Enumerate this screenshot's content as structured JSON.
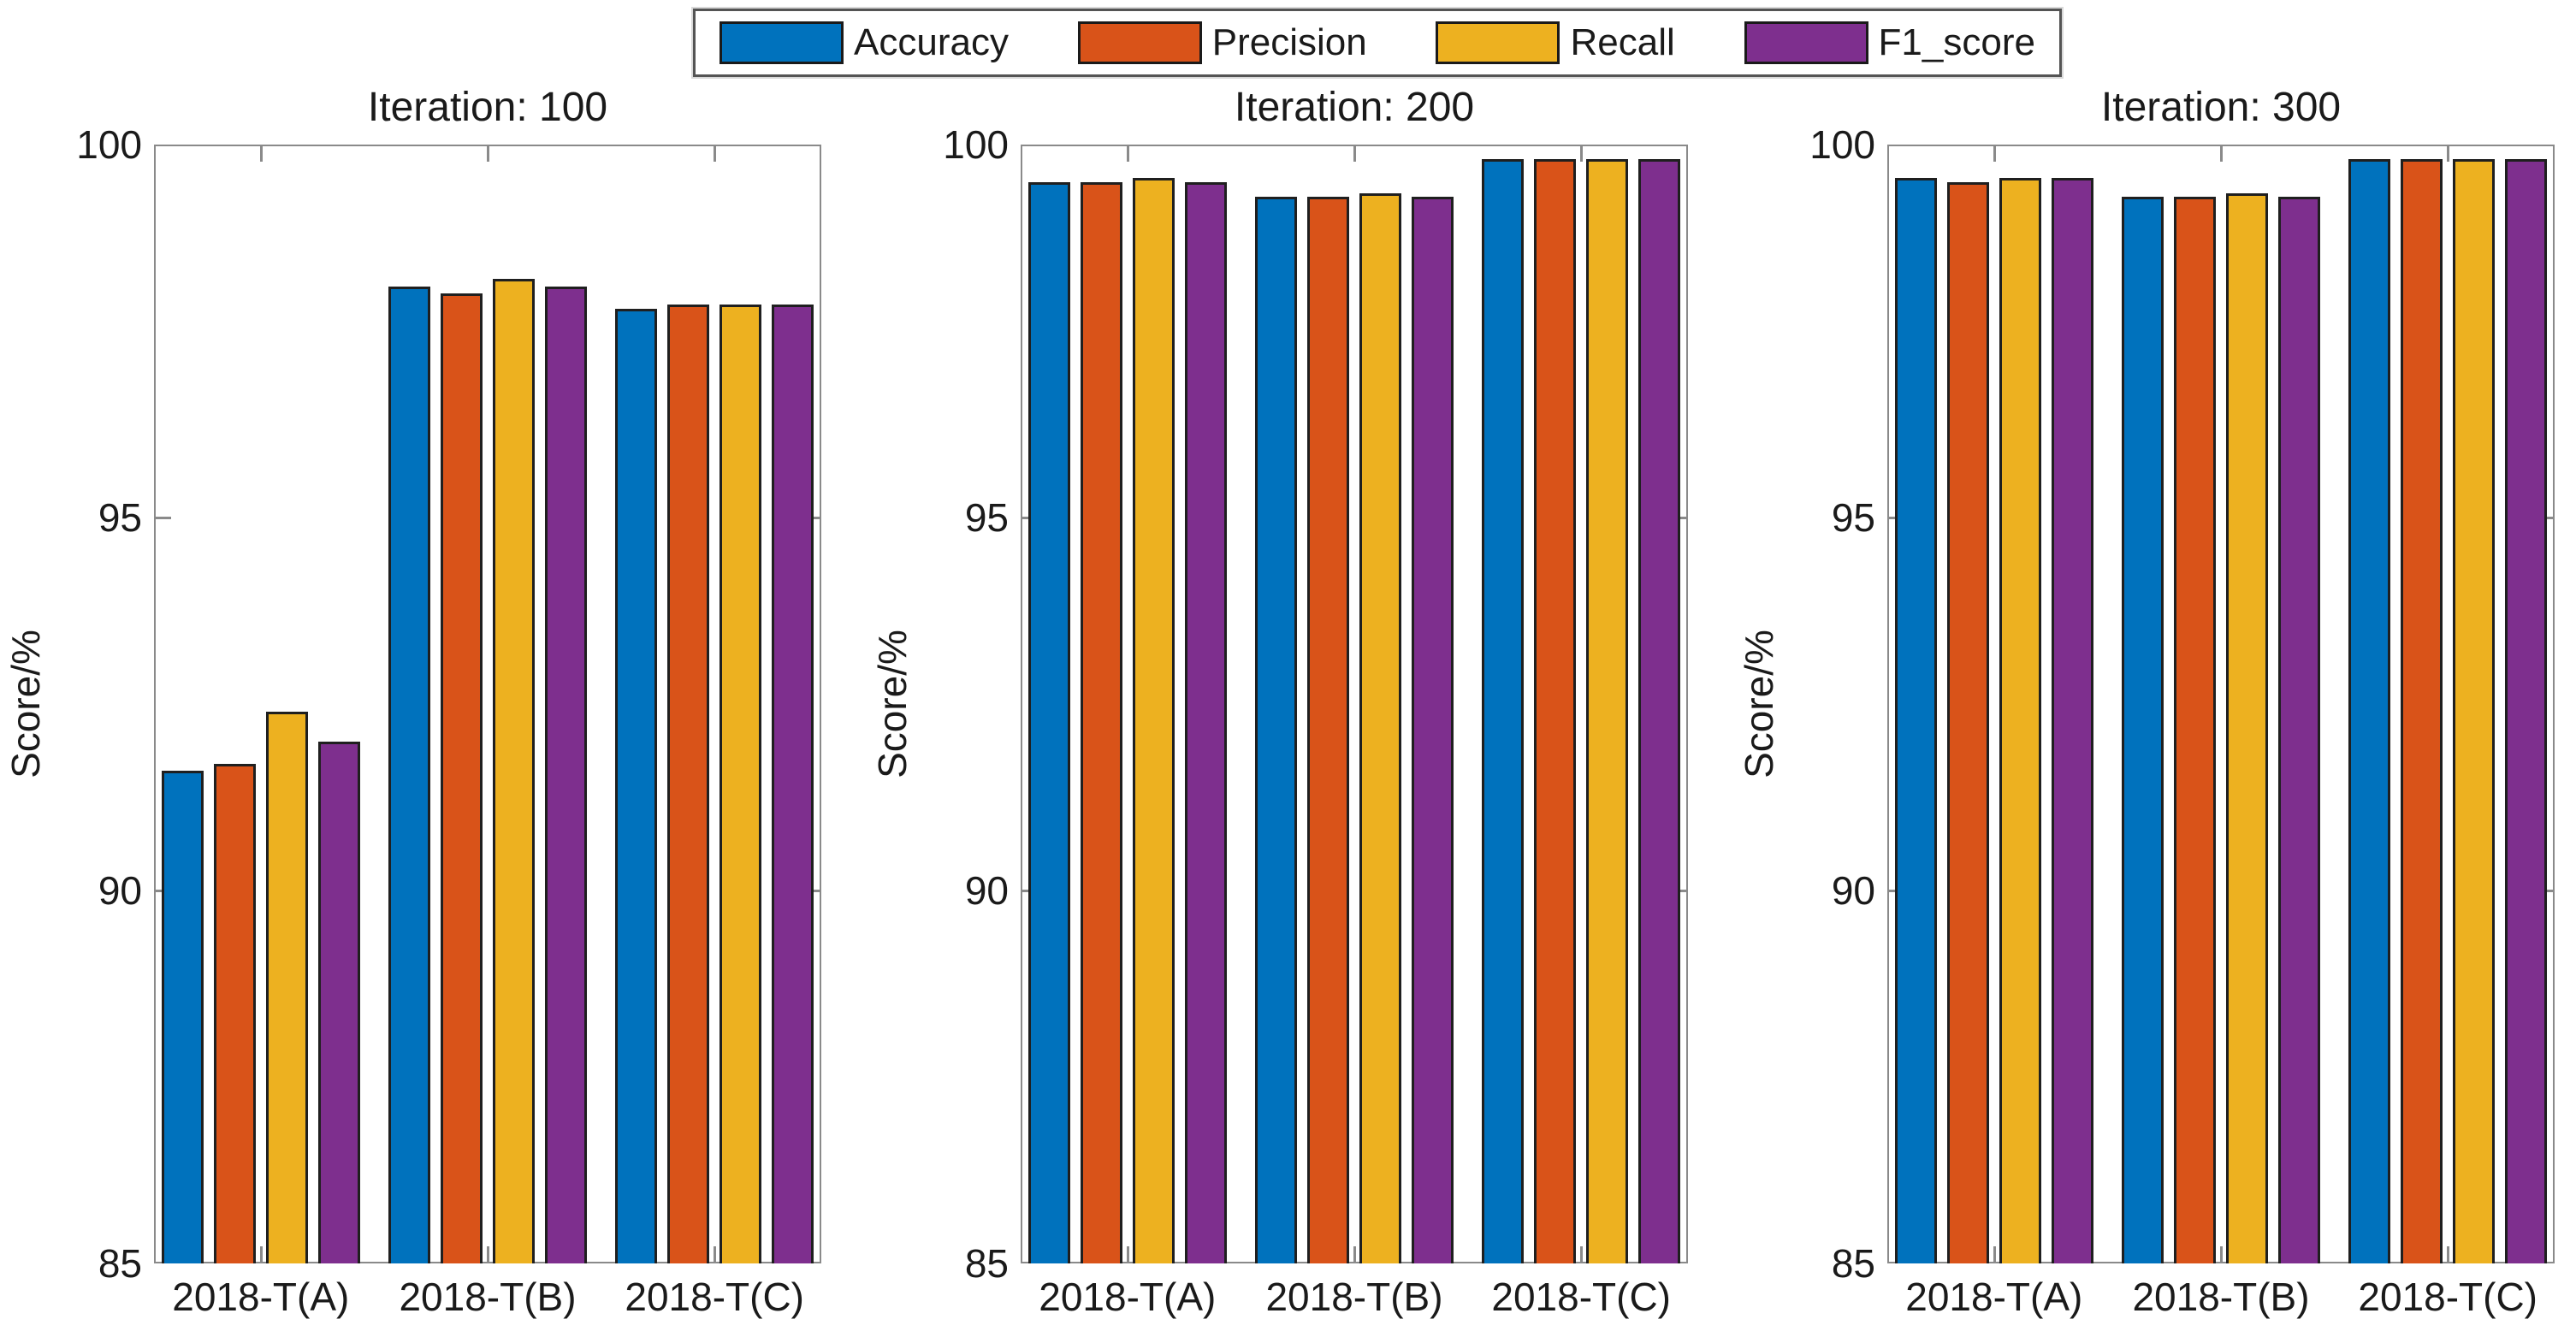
{
  "figure": {
    "background": "#ffffff",
    "text_color": "#1a1a1a",
    "axis_color": "#8a8a8a"
  },
  "legend": {
    "items": [
      {
        "label": "Accuracy",
        "color": "#0072BD"
      },
      {
        "label": "Precision",
        "color": "#D95319"
      },
      {
        "label": "Recall",
        "color": "#EDB120"
      },
      {
        "label": "F1_score",
        "color": "#7E2F8E"
      }
    ],
    "position": "top-center"
  },
  "chart_data": [
    {
      "type": "bar",
      "title": "Iteration: 100",
      "ylabel": "Score/%",
      "ylim": [
        85,
        100
      ],
      "yticks": [
        85,
        90,
        95,
        100
      ],
      "grid": false,
      "categories": [
        "2018-T(A)",
        "2018-T(B)",
        "2018-T(C)"
      ],
      "series": [
        {
          "name": "Accuracy",
          "color": "#0072BD",
          "values": [
            91.6,
            98.1,
            97.8
          ]
        },
        {
          "name": "Precision",
          "color": "#D95319",
          "values": [
            91.7,
            98.0,
            97.85
          ]
        },
        {
          "name": "Recall",
          "color": "#EDB120",
          "values": [
            92.4,
            98.2,
            97.85
          ]
        },
        {
          "name": "F1_score",
          "color": "#7E2F8E",
          "values": [
            92.0,
            98.1,
            97.85
          ]
        }
      ]
    },
    {
      "type": "bar",
      "title": "Iteration: 200",
      "ylabel": "Score/%",
      "ylim": [
        85,
        100
      ],
      "yticks": [
        85,
        90,
        95,
        100
      ],
      "grid": false,
      "categories": [
        "2018-T(A)",
        "2018-T(B)",
        "2018-T(C)"
      ],
      "series": [
        {
          "name": "Accuracy",
          "color": "#0072BD",
          "values": [
            99.5,
            99.3,
            99.8
          ]
        },
        {
          "name": "Precision",
          "color": "#D95319",
          "values": [
            99.5,
            99.3,
            99.8
          ]
        },
        {
          "name": "Recall",
          "color": "#EDB120",
          "values": [
            99.55,
            99.35,
            99.8
          ]
        },
        {
          "name": "F1_score",
          "color": "#7E2F8E",
          "values": [
            99.5,
            99.3,
            99.8
          ]
        }
      ]
    },
    {
      "type": "bar",
      "title": "Iteration: 300",
      "ylabel": "Score/%",
      "ylim": [
        85,
        100
      ],
      "yticks": [
        85,
        90,
        95,
        100
      ],
      "grid": false,
      "categories": [
        "2018-T(A)",
        "2018-T(B)",
        "2018-T(C)"
      ],
      "series": [
        {
          "name": "Accuracy",
          "color": "#0072BD",
          "values": [
            99.55,
            99.3,
            99.8
          ]
        },
        {
          "name": "Precision",
          "color": "#D95319",
          "values": [
            99.5,
            99.3,
            99.8
          ]
        },
        {
          "name": "Recall",
          "color": "#EDB120",
          "values": [
            99.55,
            99.35,
            99.8
          ]
        },
        {
          "name": "F1_score",
          "color": "#7E2F8E",
          "values": [
            99.55,
            99.3,
            99.8
          ]
        }
      ]
    }
  ]
}
